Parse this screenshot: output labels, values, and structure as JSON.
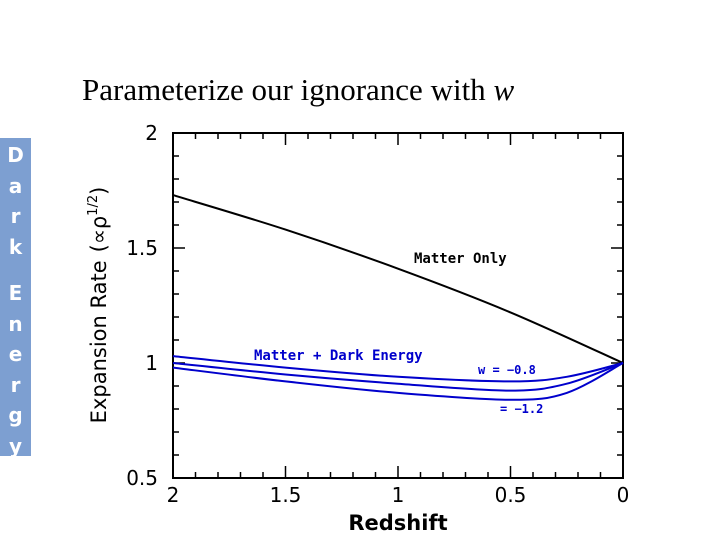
{
  "slide": {
    "title_main": "Parameterize our ignorance with ",
    "title_var": "w"
  },
  "side_label": {
    "word1": [
      "D",
      "a",
      "r",
      "k"
    ],
    "word2": [
      "E",
      "n",
      "e",
      "r",
      "g",
      "y"
    ]
  },
  "chart_data": {
    "type": "line",
    "xlabel": "Redshift",
    "ylabel": "Expansion Rate",
    "ylabel_suffix": "(∝ρ",
    "ylabel_exp": "1/2",
    "ylabel_close": ")",
    "xlim": [
      2,
      0
    ],
    "ylim": [
      0.5,
      2
    ],
    "x_reversed": true,
    "xticks": [
      2,
      1.5,
      1,
      0.5,
      0
    ],
    "xtick_labels": [
      "2",
      "1.5",
      "1",
      "0.5",
      "0"
    ],
    "yticks": [
      0.5,
      1,
      1.5,
      2
    ],
    "ytick_labels": [
      "0.5",
      "1",
      "1.5",
      "2"
    ],
    "grid": false,
    "series": [
      {
        "name": "Matter Only",
        "color": "#000000",
        "x": [
          2,
          1.5,
          1,
          0.5,
          0
        ],
        "y": [
          1.73,
          1.58,
          1.41,
          1.22,
          1.0
        ]
      },
      {
        "name": "w = −0.8",
        "color": "#0000cc",
        "x": [
          2,
          1.5,
          1,
          0.5,
          0.25,
          0
        ],
        "y": [
          1.03,
          0.98,
          0.94,
          0.92,
          0.94,
          1.0
        ]
      },
      {
        "name": "",
        "color": "#0000cc",
        "x": [
          2,
          1.5,
          1,
          0.5,
          0.25,
          0
        ],
        "y": [
          1.0,
          0.95,
          0.91,
          0.88,
          0.91,
          1.0
        ]
      },
      {
        "name": "= −1.2",
        "color": "#0000cc",
        "x": [
          2,
          1.5,
          1,
          0.5,
          0.25,
          0
        ],
        "y": [
          0.98,
          0.92,
          0.87,
          0.84,
          0.87,
          1.0
        ]
      }
    ],
    "annotations": [
      {
        "text": "Matter Only",
        "color": "#000000"
      },
      {
        "text": "Matter + Dark Energy",
        "color": "#0000cc"
      },
      {
        "text": "w = −0.8",
        "color": "#0000cc"
      },
      {
        "text": "= −1.2",
        "color": "#0000cc"
      }
    ]
  }
}
